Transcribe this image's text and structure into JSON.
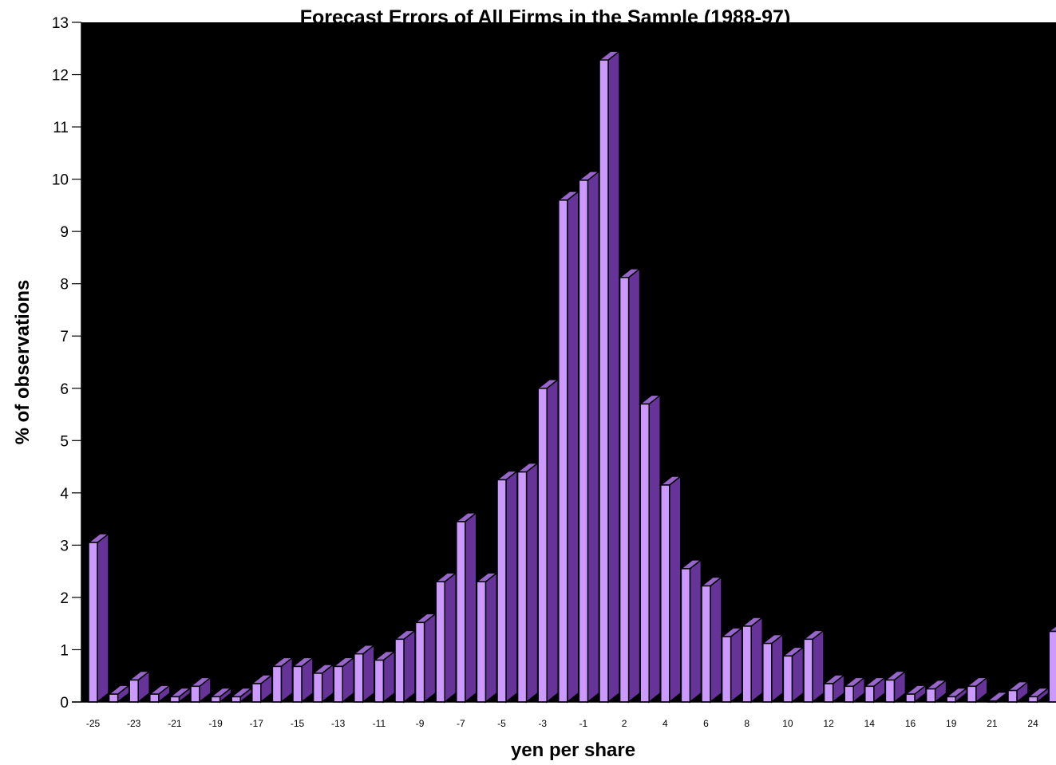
{
  "chart_data": {
    "type": "bar",
    "title": "Forecast Errors of All Firms in the Sample (1988-97)",
    "xlabel": "yen per share",
    "ylabel": "% of observations",
    "ylim": [
      0,
      13
    ],
    "yticks": [
      0,
      1,
      2,
      3,
      4,
      5,
      6,
      7,
      8,
      9,
      10,
      11,
      12,
      13
    ],
    "xtick_labels": [
      "-25",
      "-23",
      "-21",
      "-19",
      "-17",
      "-15",
      "-13",
      "-11",
      "-9",
      "-7",
      "-5",
      "-3",
      "-1",
      "2",
      "4",
      "6",
      "8",
      "10",
      "12",
      "14",
      "16",
      "19",
      "21",
      "24"
    ],
    "grid": false,
    "legend": "none",
    "values": [
      3.05,
      0.15,
      0.42,
      0.15,
      0.1,
      0.3,
      0.1,
      0.1,
      0.35,
      0.68,
      0.68,
      0.55,
      0.68,
      0.92,
      0.8,
      1.2,
      1.52,
      2.3,
      3.45,
      2.3,
      4.25,
      4.4,
      6.0,
      9.6,
      9.98,
      12.28,
      8.12,
      5.7,
      4.15,
      2.55,
      2.22,
      1.25,
      1.45,
      1.12,
      0.88,
      1.2,
      0.35,
      0.3,
      0.3,
      0.42,
      0.15,
      0.25,
      0.1,
      0.3,
      0.02,
      0.22,
      0.1,
      1.35
    ],
    "colors": {
      "plot_background": "#000000",
      "bar_front": "#cc99ff",
      "bar_side": "#663399",
      "bar_top": "#9966cc",
      "bar_edge": "#000000",
      "text": "#000000"
    }
  }
}
